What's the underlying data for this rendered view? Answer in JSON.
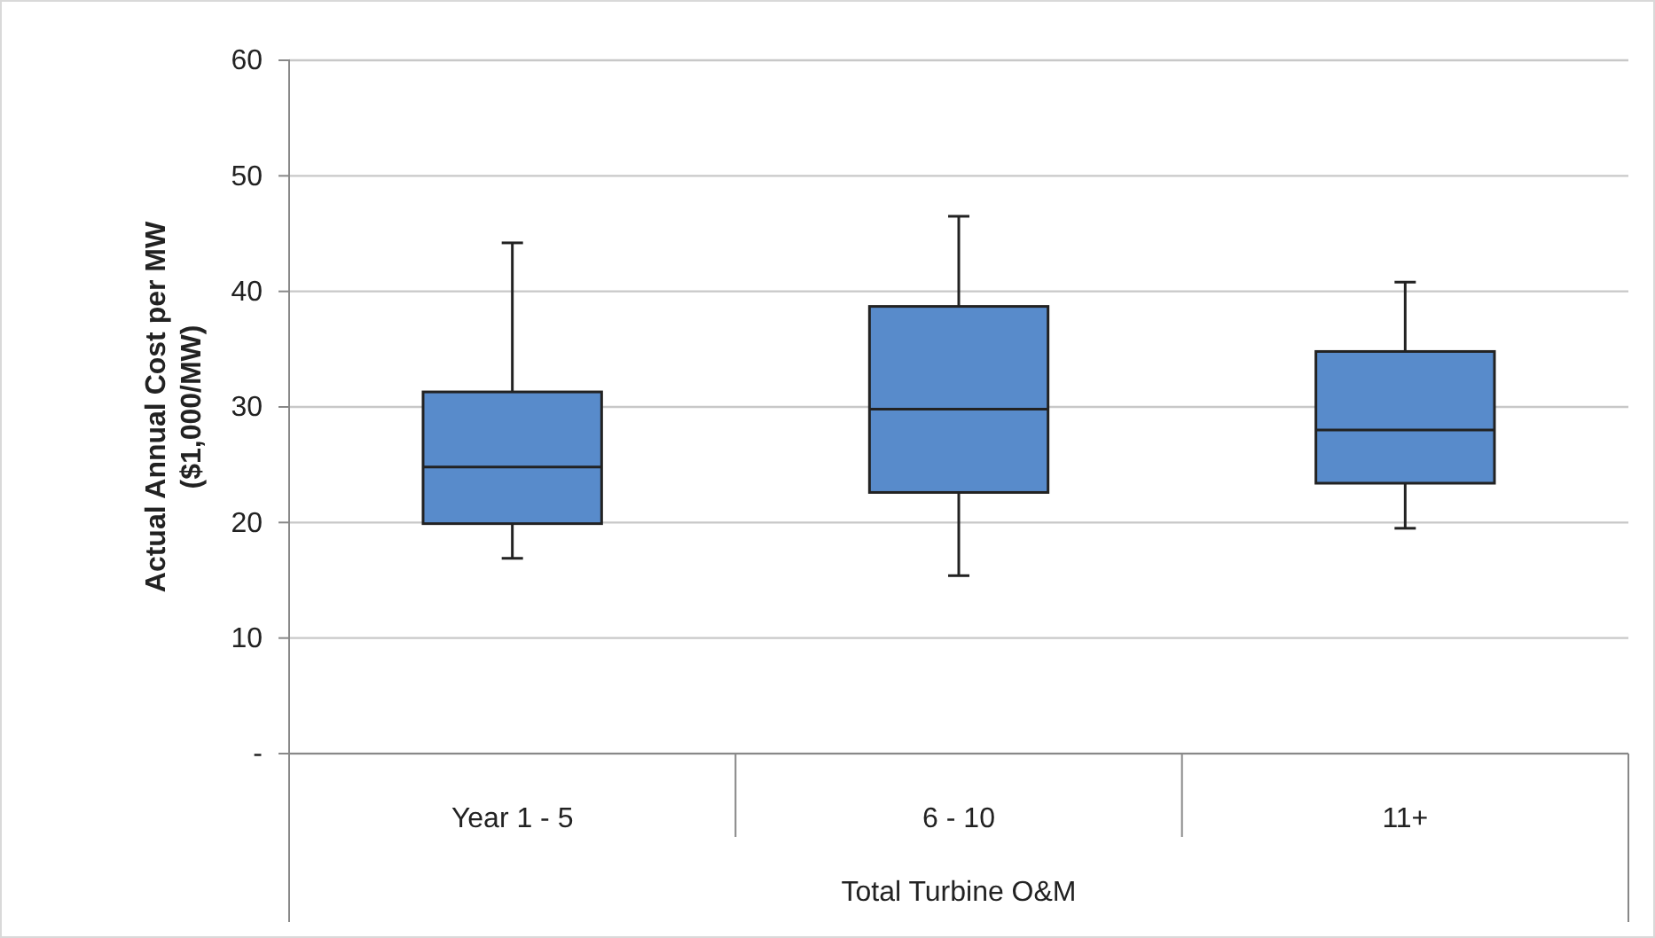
{
  "chart_data": {
    "type": "box",
    "ylabel": "Actual Annual Cost per MW ($1,000/MW)",
    "xlabel": "Total Turbine O&M",
    "categories": [
      "Year 1 - 5",
      "6 - 10",
      "11+"
    ],
    "color": "#588bcb",
    "boxes": [
      {
        "low": 16.9,
        "q1": 19.9,
        "median": 24.8,
        "q3": 31.3,
        "high": 44.2
      },
      {
        "low": 15.4,
        "q1": 22.6,
        "median": 29.8,
        "q3": 38.7,
        "high": 46.5
      },
      {
        "low": 19.5,
        "q1": 23.4,
        "median": 28.0,
        "q3": 34.8,
        "high": 40.8
      }
    ],
    "ylim": [
      0,
      60
    ],
    "yticks": [
      {
        "value": 0,
        "label": "-"
      },
      10,
      20,
      30,
      40,
      50,
      60
    ],
    "grid": "y"
  }
}
